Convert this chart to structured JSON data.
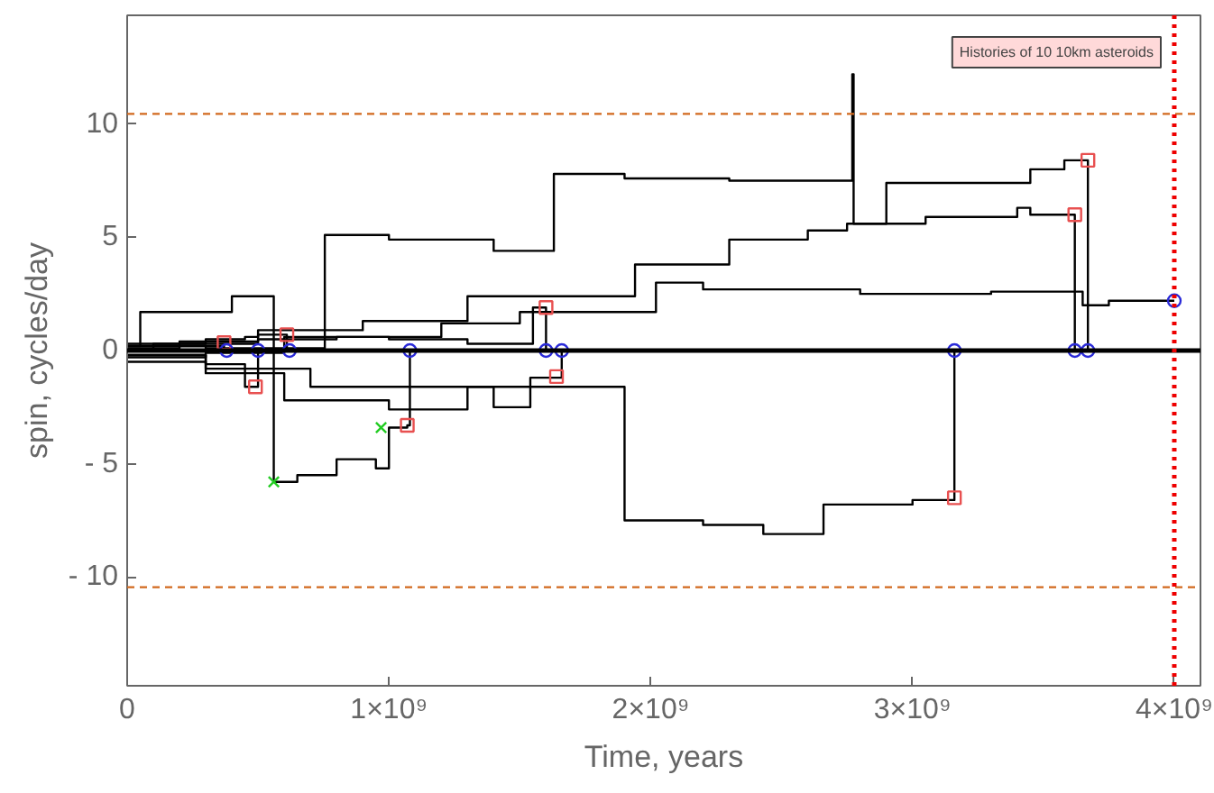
{
  "chart_data": {
    "type": "step",
    "xlabel": "Time, years",
    "ylabel": "spin, cycles/day",
    "annotations": [
      "Histories of 10 10km asteroids"
    ],
    "xlim": [
      0,
      4100000000.0
    ],
    "ylim": [
      -14.8,
      14.8
    ],
    "xticks": [
      0,
      {
        "value": 1000000000.0,
        "label": "1×10⁹"
      },
      {
        "value": 2000000000.0,
        "label": "2×10⁹"
      },
      {
        "value": 3000000000.0,
        "label": "3×10⁹"
      },
      {
        "value": 4000000000.0,
        "label": "4×10⁹"
      }
    ],
    "yticks": [
      {
        "value": -10,
        "label": "- 10"
      },
      {
        "value": -5,
        "label": "- 5"
      },
      0,
      5,
      10
    ],
    "grid": false,
    "ref_lines": [
      {
        "axis": "y",
        "value": 0,
        "color": "#000000",
        "line_style": "solid"
      },
      {
        "axis": "y",
        "value": 10.45,
        "color": "#d2691e",
        "line_style": "dashed"
      },
      {
        "axis": "y",
        "value": -10.45,
        "color": "#d2691e",
        "line_style": "dashed"
      },
      {
        "axis": "x",
        "value": 4000000000.0,
        "color": "#ee0000",
        "line_style": "dotted"
      }
    ],
    "series": [
      {
        "color": "#000000",
        "x": [
          0,
          300000000.0,
          755000000.0,
          1000000000.0,
          1400000000.0,
          1630000000.0,
          1900000000.0,
          2300000000.0,
          2770000000.0,
          2775000000.0,
          2900000000.0,
          3450000000.0,
          3580000000.0,
          3670000000.0
        ],
        "values": [
          0.2,
          0.1,
          5.1,
          4.9,
          4.4,
          7.8,
          7.6,
          7.5,
          12.2,
          5.6,
          7.4,
          8.0,
          8.4,
          0
        ]
      },
      {
        "color": "#000000",
        "x": [
          0,
          500000000.0,
          900000000.0,
          1300000000.0,
          1940000000.0,
          2300000000.0,
          2600000000.0,
          2750000000.0,
          3050000000.0,
          3400000000.0,
          3450000000.0,
          3620000000.0
        ],
        "values": [
          0.3,
          0.9,
          1.3,
          2.4,
          3.8,
          4.9,
          5.3,
          5.6,
          5.9,
          6.3,
          6.0,
          0
        ]
      },
      {
        "color": "#000000",
        "x": [
          0,
          200000000.0,
          500000000.0,
          800000000.0,
          1200000000.0,
          1500000000.0,
          2020000000.0,
          2200000000.0,
          2800000000.0,
          3300000000.0,
          3650000000.0,
          3750000000.0,
          4000000000.0
        ],
        "values": [
          0.2,
          0.4,
          0.5,
          0.6,
          1.2,
          1.7,
          3.0,
          2.7,
          2.5,
          2.6,
          2.0,
          2.2,
          2.2
        ]
      },
      {
        "color": "#000000",
        "x": [
          0,
          50000000.0,
          400000000.0,
          560000000.0,
          650000000.0,
          800000000.0,
          950000000.0,
          1000000000.0,
          1070000000.0,
          1080000000.0
        ],
        "values": [
          0.2,
          1.7,
          2.4,
          -5.8,
          -5.5,
          -4.8,
          -5.2,
          -3.4,
          -3.3,
          0
        ]
      },
      {
        "color": "#000000",
        "x": [
          0,
          100000000.0,
          300000000.0,
          450000000.0,
          500000000.0,
          610000000.0
        ],
        "values": [
          0,
          0.3,
          0.5,
          0.6,
          0.7,
          0
        ]
      },
      {
        "color": "#000000",
        "x": [
          0,
          200000000.0,
          370000000.0
        ],
        "values": [
          0.1,
          0.2,
          0
        ]
      },
      {
        "color": "#000000",
        "x": [
          0,
          300000000.0,
          450000000.0,
          500000000.0
        ],
        "values": [
          -0.2,
          -0.6,
          -1.6,
          0
        ]
      },
      {
        "color": "#000000",
        "x": [
          0,
          300000000.0,
          600000000.0,
          1000000000.0,
          1300000000.0,
          1550000000.0,
          1600000000.0
        ],
        "values": [
          -0.3,
          -0.1,
          0.6,
          0.5,
          0.3,
          1.9,
          0
        ]
      },
      {
        "color": "#000000",
        "x": [
          0,
          300000000.0,
          700000000.0,
          1400000000.0,
          1540000000.0,
          1660000000.0
        ],
        "values": [
          -0.2,
          -0.8,
          -1.6,
          -2.5,
          -1.2,
          0
        ]
      },
      {
        "color": "#000000",
        "x": [
          0,
          300000000.0,
          600000000.0,
          1000000000.0,
          1300000000.0,
          1900000000.0,
          2200000000.0,
          2430000000.0,
          2660000000.0,
          3000000000.0,
          3160000000.0
        ],
        "values": [
          -0.5,
          -1.0,
          -2.2,
          -2.6,
          -1.6,
          -7.5,
          -7.7,
          -8.1,
          -6.8,
          -6.6,
          0
        ]
      },
      {
        "type": "scatter",
        "marker": "square",
        "color": "#e85050",
        "x": [
          370000000.0,
          490000000.0,
          610000000.0,
          1070000000.0,
          1600000000.0,
          1640000000.0,
          3160000000.0,
          3620000000.0,
          3670000000.0
        ],
        "values": [
          0.35,
          -1.6,
          0.7,
          -3.3,
          1.9,
          -1.15,
          -6.5,
          6.0,
          8.4
        ]
      },
      {
        "type": "scatter",
        "marker": "circle",
        "color": "#2a2ad8",
        "x": [
          380000000.0,
          500000000.0,
          620000000.0,
          1080000000.0,
          1600000000.0,
          1660000000.0,
          3160000000.0,
          3620000000.0,
          3670000000.0,
          4000000000.0
        ],
        "values": [
          0,
          0,
          0,
          0,
          0,
          0,
          0,
          0,
          0,
          2.2
        ]
      },
      {
        "type": "scatter",
        "marker": "cross",
        "color": "#22cc22",
        "x": [
          560000000.0,
          970000000.0
        ],
        "values": [
          -5.8,
          -3.4
        ]
      }
    ]
  }
}
